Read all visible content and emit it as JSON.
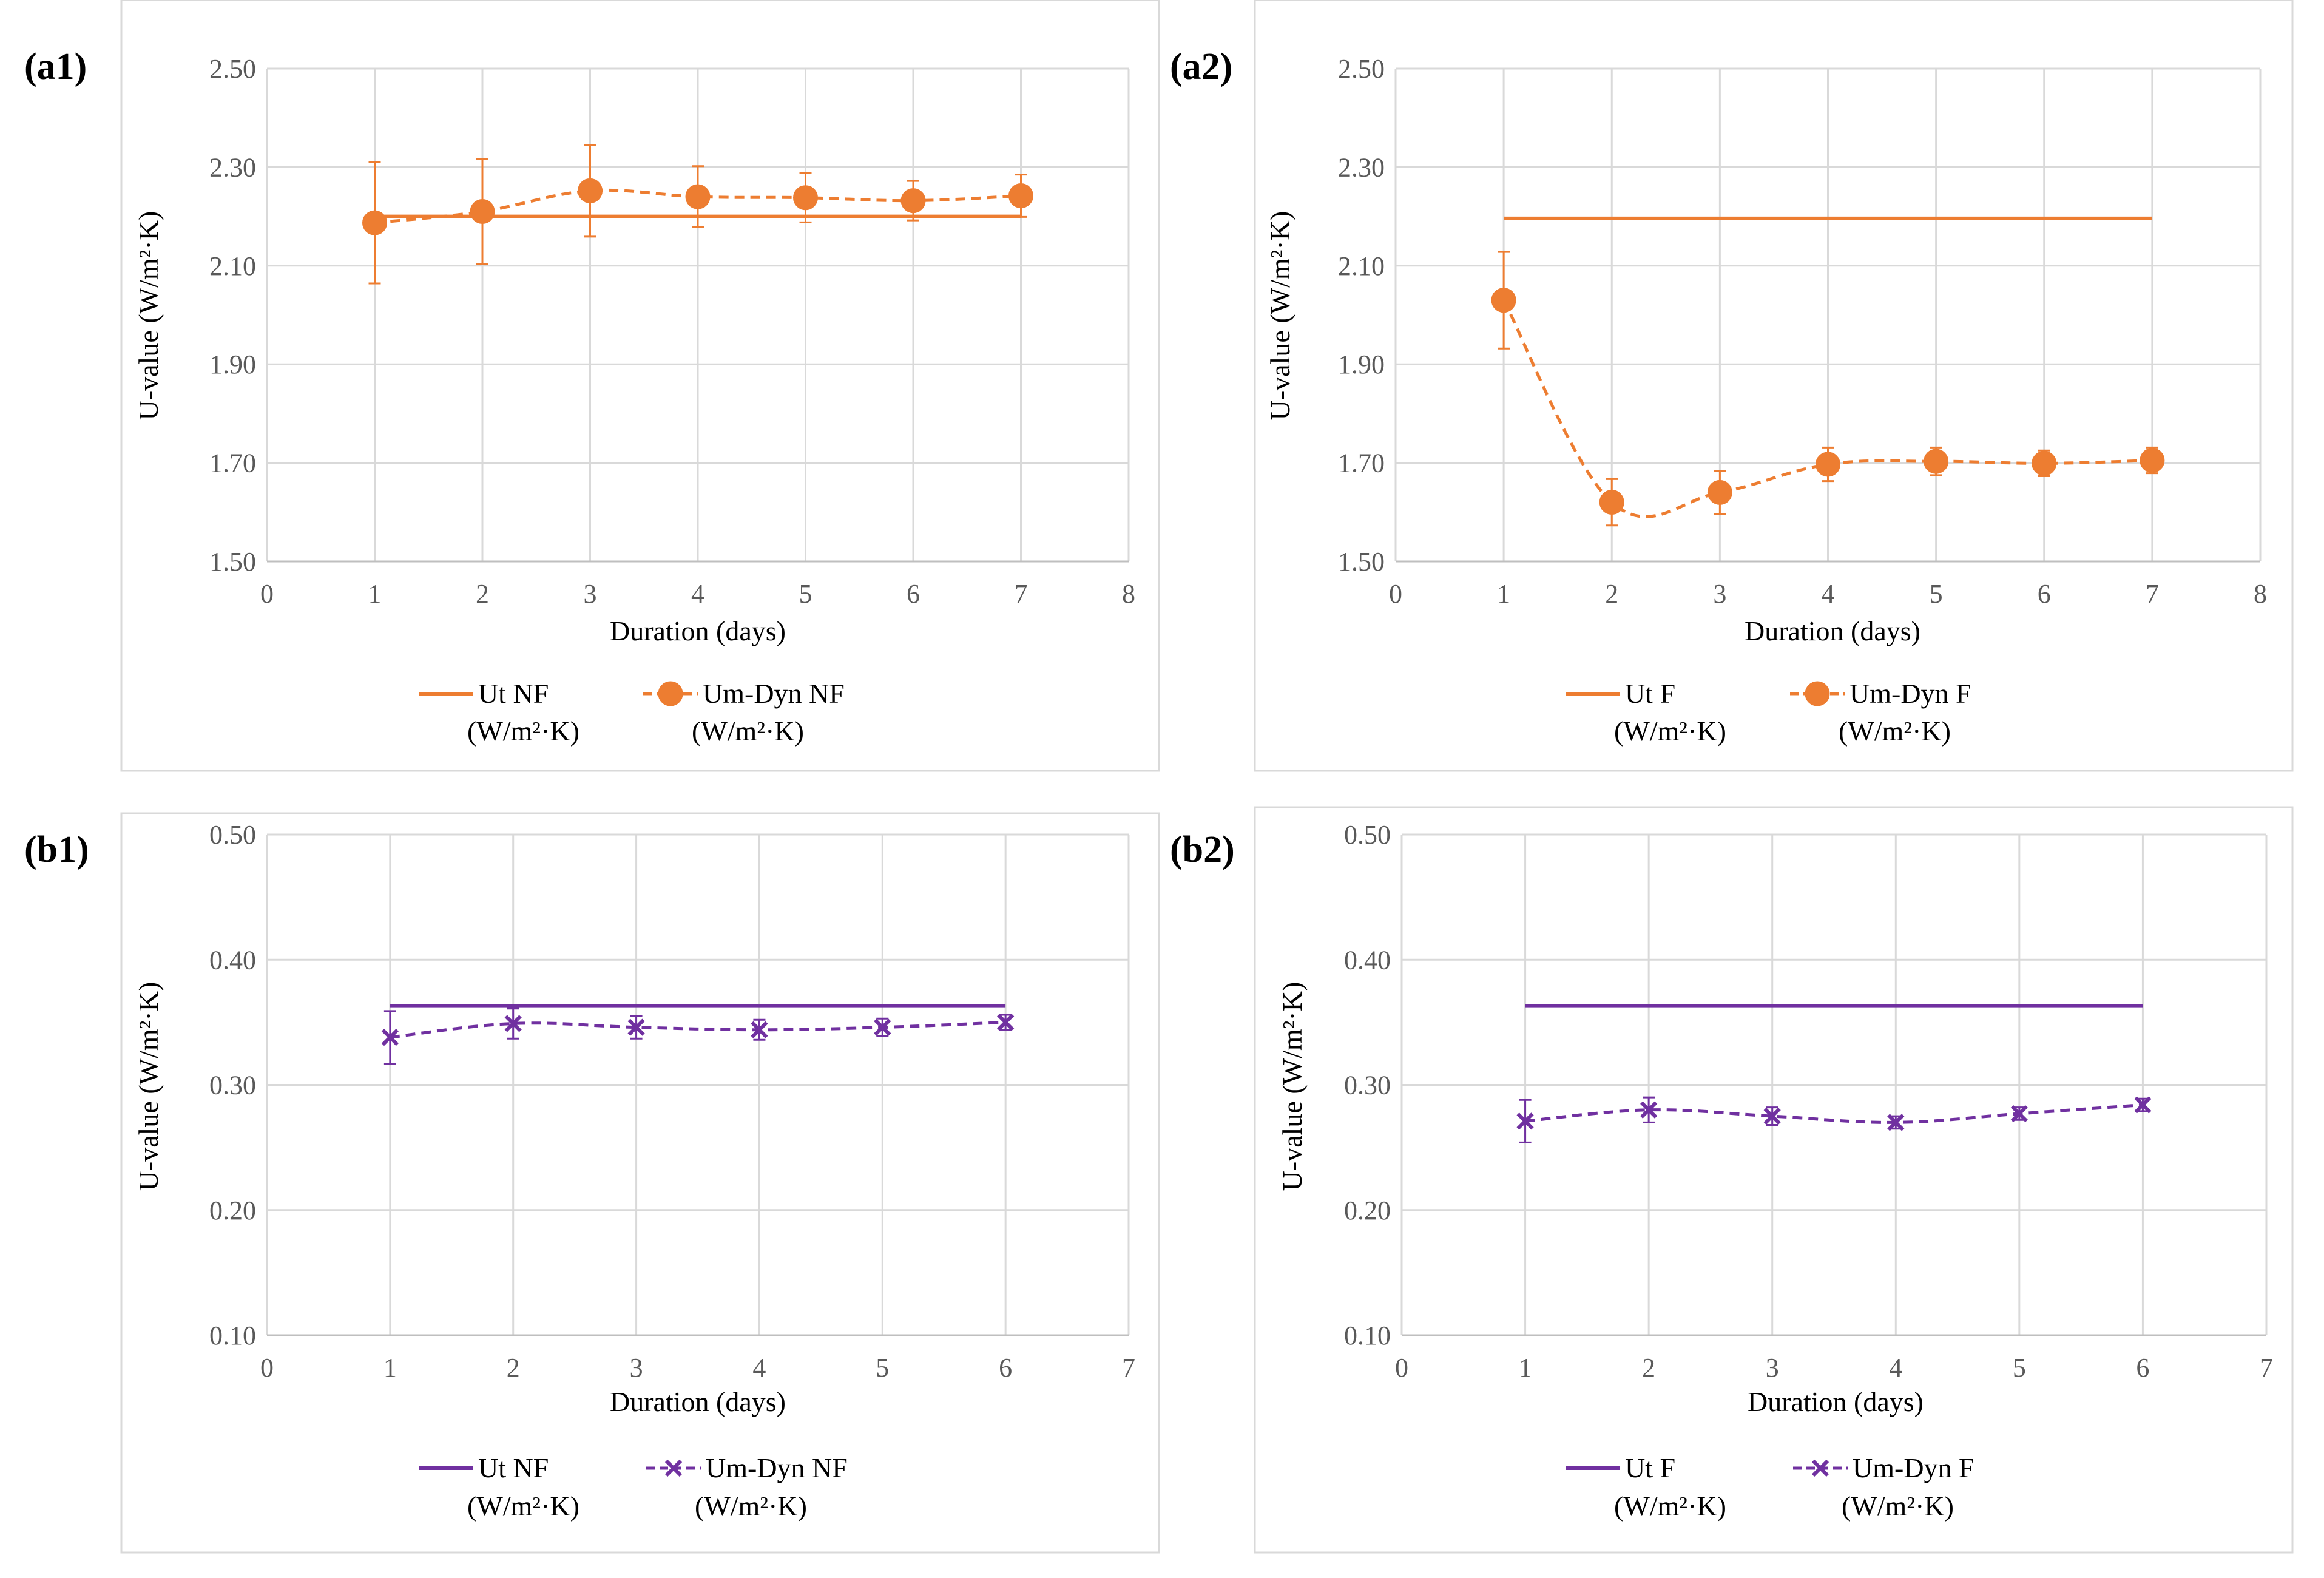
{
  "chart_data": [
    {
      "id": "a1",
      "panel_label": "(a1)",
      "type": "line",
      "xlabel": "Duration (days)",
      "ylabel": "U-value (W/m²·K)",
      "xlim": [
        0,
        8
      ],
      "ylim": [
        1.5,
        2.5
      ],
      "xticks": [
        "0",
        "1",
        "2",
        "3",
        "4",
        "5",
        "6",
        "7",
        "8"
      ],
      "yticks": [
        "1.50",
        "1.70",
        "1.90",
        "2.10",
        "2.30",
        "2.50"
      ],
      "grid": true,
      "legend_position": "bottom",
      "series": [
        {
          "name": "Ut NF",
          "unit": "(W/m²·K)",
          "style": "solid",
          "marker": "none",
          "color": "#ED7D31",
          "x": [
            1,
            7
          ],
          "values": [
            2.2,
            2.2
          ],
          "error": []
        },
        {
          "name": "Um-Dyn NF",
          "unit": "(W/m²·K)",
          "style": "dashed",
          "marker": "circle",
          "color": "#ED7D31",
          "x": [
            1,
            2,
            3,
            4,
            5,
            6,
            7
          ],
          "values": [
            2.187,
            2.21,
            2.252,
            2.24,
            2.238,
            2.232,
            2.242
          ],
          "error": [
            0.123,
            0.106,
            0.093,
            0.062,
            0.05,
            0.04,
            0.043
          ]
        }
      ]
    },
    {
      "id": "a2",
      "panel_label": "(a2)",
      "type": "line",
      "xlabel": "Duration (days)",
      "ylabel": "U-value (W/m²·K)",
      "xlim": [
        0,
        8
      ],
      "ylim": [
        1.5,
        2.5
      ],
      "xticks": [
        "0",
        "1",
        "2",
        "3",
        "4",
        "5",
        "6",
        "7",
        "8"
      ],
      "yticks": [
        "1.50",
        "1.70",
        "1.90",
        "2.10",
        "2.30",
        "2.50"
      ],
      "grid": true,
      "legend_position": "bottom",
      "series": [
        {
          "name": "Ut F",
          "unit": "(W/m²·K)",
          "style": "solid",
          "marker": "none",
          "color": "#ED7D31",
          "x": [
            1,
            7
          ],
          "values": [
            2.196,
            2.196
          ],
          "error": []
        },
        {
          "name": "Um-Dyn F",
          "unit": "(W/m²·K)",
          "style": "dashed",
          "marker": "circle",
          "color": "#ED7D31",
          "x": [
            1,
            2,
            3,
            4,
            5,
            6,
            7
          ],
          "values": [
            2.03,
            1.62,
            1.64,
            1.697,
            1.703,
            1.699,
            1.705
          ],
          "error": [
            0.098,
            0.047,
            0.044,
            0.034,
            0.028,
            0.026,
            0.026
          ]
        }
      ]
    },
    {
      "id": "b1",
      "panel_label": "(b1)",
      "type": "line",
      "xlabel": "Duration (days)",
      "ylabel": "U-value (W/m²·K)",
      "xlim": [
        0,
        7
      ],
      "ylim": [
        0.1,
        0.5
      ],
      "xticks": [
        "0",
        "1",
        "2",
        "3",
        "4",
        "5",
        "6",
        "7"
      ],
      "yticks": [
        "0.10",
        "0.20",
        "0.30",
        "0.40",
        "0.50"
      ],
      "grid": true,
      "legend_position": "bottom",
      "series": [
        {
          "name": "Ut NF",
          "unit": "(W/m²·K)",
          "style": "solid",
          "marker": "none",
          "color": "#7030A0",
          "x": [
            1,
            6
          ],
          "values": [
            0.363,
            0.363
          ],
          "error": []
        },
        {
          "name": "Um-Dyn NF",
          "unit": "(W/m²·K)",
          "style": "dashed",
          "marker": "cross",
          "color": "#7030A0",
          "x": [
            1,
            2,
            3,
            4,
            5,
            6
          ],
          "values": [
            0.338,
            0.349,
            0.346,
            0.344,
            0.346,
            0.35
          ],
          "error": [
            0.021,
            0.012,
            0.009,
            0.008,
            0.007,
            0.006
          ]
        }
      ]
    },
    {
      "id": "b2",
      "panel_label": "(b2)",
      "type": "line",
      "xlabel": "Duration (days)",
      "ylabel": "U-value (W/m²·K)",
      "xlim": [
        0,
        7
      ],
      "ylim": [
        0.1,
        0.5
      ],
      "xticks": [
        "0",
        "1",
        "2",
        "3",
        "4",
        "5",
        "6",
        "7"
      ],
      "yticks": [
        "0.10",
        "0.20",
        "0.30",
        "0.40",
        "0.50"
      ],
      "grid": true,
      "legend_position": "bottom",
      "series": [
        {
          "name": "Ut F",
          "unit": "(W/m²·K)",
          "style": "solid",
          "marker": "none",
          "color": "#7030A0",
          "x": [
            1,
            6
          ],
          "values": [
            0.363,
            0.363
          ],
          "error": []
        },
        {
          "name": "Um-Dyn F",
          "unit": "(W/m²·K)",
          "style": "dashed",
          "marker": "cross",
          "color": "#7030A0",
          "x": [
            1,
            2,
            3,
            4,
            5,
            6
          ],
          "values": [
            0.271,
            0.28,
            0.275,
            0.27,
            0.277,
            0.284
          ],
          "error": [
            0.017,
            0.01,
            0.007,
            0.005,
            0.005,
            0.005
          ]
        }
      ]
    }
  ]
}
